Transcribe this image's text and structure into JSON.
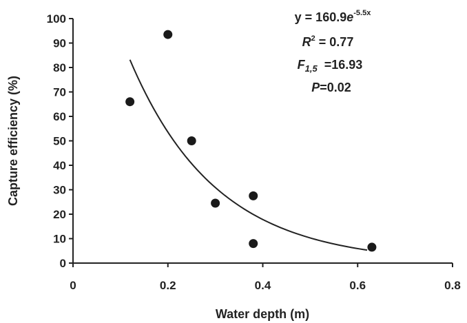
{
  "chart_data": {
    "type": "scatter",
    "xlabel": "Water depth (m)",
    "ylabel": "Capture efficiency (%)",
    "xlim": [
      0,
      0.8
    ],
    "ylim": [
      0,
      100
    ],
    "x_ticks": [
      "0",
      "0.2",
      "0.4",
      "0.6",
      "0.8"
    ],
    "y_ticks": [
      "0",
      "10",
      "20",
      "30",
      "40",
      "50",
      "60",
      "70",
      "80",
      "90",
      "100"
    ],
    "grid": false,
    "points": [
      {
        "x": 0.12,
        "y": 66
      },
      {
        "x": 0.2,
        "y": 93.5
      },
      {
        "x": 0.25,
        "y": 50
      },
      {
        "x": 0.3,
        "y": 24.5
      },
      {
        "x": 0.38,
        "y": 27.5
      },
      {
        "x": 0.38,
        "y": 8
      },
      {
        "x": 0.63,
        "y": 6.5
      }
    ],
    "fit": {
      "type": "exponential",
      "a": 160.9,
      "b": -5.5,
      "x_range": [
        0.12,
        0.62
      ]
    },
    "annotations": {
      "equation_prefix": "y = 160.9",
      "equation_e": "e",
      "equation_exp": "-5.5x",
      "r2_r": "R",
      "r2_sup": "2",
      "r2_value": " = 0.77",
      "f_f": "F",
      "f_sub": "1,5",
      "f_value": "  =16.93",
      "p_p": "P",
      "p_value": "=0.02"
    }
  }
}
